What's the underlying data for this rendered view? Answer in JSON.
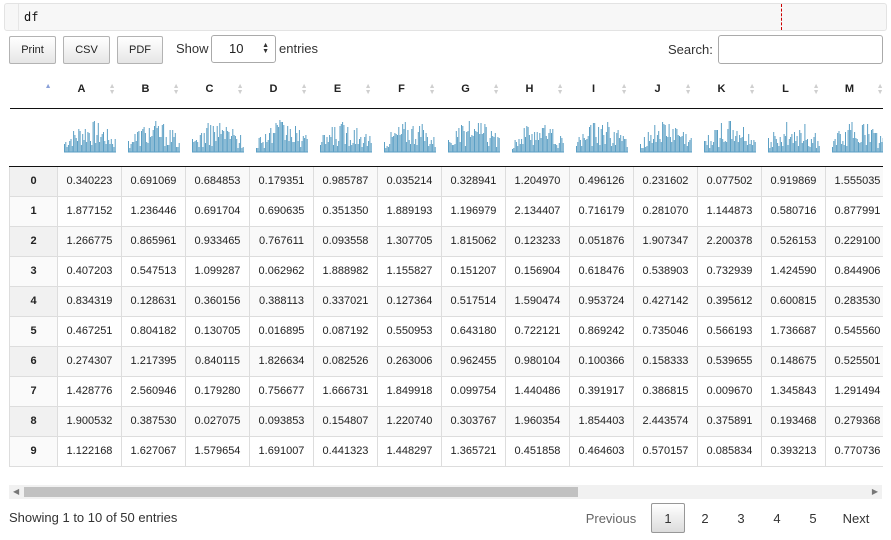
{
  "code_cell": {
    "text": "df"
  },
  "buttons": {
    "print": "Print",
    "csv": "CSV",
    "pdf": "PDF"
  },
  "length": {
    "show_label": "Show",
    "value": "10",
    "entries_label": "entries"
  },
  "search": {
    "label": "Search:",
    "value": ""
  },
  "table": {
    "index_header": "",
    "columns": [
      "A",
      "B",
      "C",
      "D",
      "E",
      "F",
      "G",
      "H",
      "I",
      "J",
      "K",
      "L",
      "M"
    ],
    "sorted_column": "index",
    "sort_direction": "ascending",
    "histogram_color": "#5b9fc4",
    "rows": [
      {
        "index": "0",
        "values": [
          "0.340223",
          "0.691069",
          "0.684853",
          "0.179351",
          "0.985787",
          "0.035214",
          "0.328941",
          "1.204970",
          "0.496126",
          "0.231602",
          "0.077502",
          "0.919869",
          "1.555035"
        ]
      },
      {
        "index": "1",
        "values": [
          "1.877152",
          "1.236446",
          "0.691704",
          "0.690635",
          "0.351350",
          "1.889193",
          "1.196979",
          "2.134407",
          "0.716179",
          "0.281070",
          "1.144873",
          "0.580716",
          "0.877991"
        ]
      },
      {
        "index": "2",
        "values": [
          "1.266775",
          "0.865961",
          "0.933465",
          "0.767611",
          "0.093558",
          "1.307705",
          "1.815062",
          "0.123233",
          "0.051876",
          "1.907347",
          "2.200378",
          "0.526153",
          "0.229100"
        ]
      },
      {
        "index": "3",
        "values": [
          "0.407203",
          "0.547513",
          "1.099287",
          "0.062962",
          "1.888982",
          "1.155827",
          "0.151207",
          "0.156904",
          "0.618476",
          "0.538903",
          "0.732939",
          "1.424590",
          "0.844906"
        ]
      },
      {
        "index": "4",
        "values": [
          "0.834319",
          "0.128631",
          "0.360156",
          "0.388113",
          "0.337021",
          "0.127364",
          "0.517514",
          "1.590474",
          "0.953724",
          "0.427142",
          "0.395612",
          "0.600815",
          "0.283530"
        ]
      },
      {
        "index": "5",
        "values": [
          "0.467251",
          "0.804182",
          "0.130705",
          "0.016895",
          "0.087192",
          "0.550953",
          "0.643180",
          "0.722121",
          "0.869242",
          "0.735046",
          "0.566193",
          "1.736687",
          "0.545560"
        ]
      },
      {
        "index": "6",
        "values": [
          "0.274307",
          "1.217395",
          "0.840115",
          "1.826634",
          "0.082526",
          "0.263006",
          "0.962455",
          "0.980104",
          "0.100366",
          "0.158333",
          "0.539655",
          "0.148675",
          "0.525501"
        ]
      },
      {
        "index": "7",
        "values": [
          "1.428776",
          "2.560946",
          "0.179280",
          "0.756677",
          "1.666731",
          "1.849918",
          "0.099754",
          "1.440486",
          "0.391917",
          "0.386815",
          "0.009670",
          "1.345843",
          "1.291494"
        ]
      },
      {
        "index": "8",
        "values": [
          "1.900532",
          "0.387530",
          "0.027075",
          "0.093853",
          "0.154807",
          "1.220740",
          "0.303767",
          "1.960354",
          "1.854403",
          "2.443574",
          "0.375891",
          "0.193468",
          "0.279368"
        ]
      },
      {
        "index": "9",
        "values": [
          "1.122168",
          "1.627067",
          "1.579654",
          "1.691007",
          "0.441323",
          "1.448297",
          "1.365721",
          "0.451858",
          "0.464603",
          "0.570157",
          "0.085834",
          "0.393213",
          "0.770736"
        ]
      }
    ]
  },
  "footer": {
    "info": "Showing 1 to 10 of 50 entries",
    "previous": "Previous",
    "pages": [
      "1",
      "2",
      "3",
      "4",
      "5"
    ],
    "current_page": "1",
    "next": "Next"
  }
}
